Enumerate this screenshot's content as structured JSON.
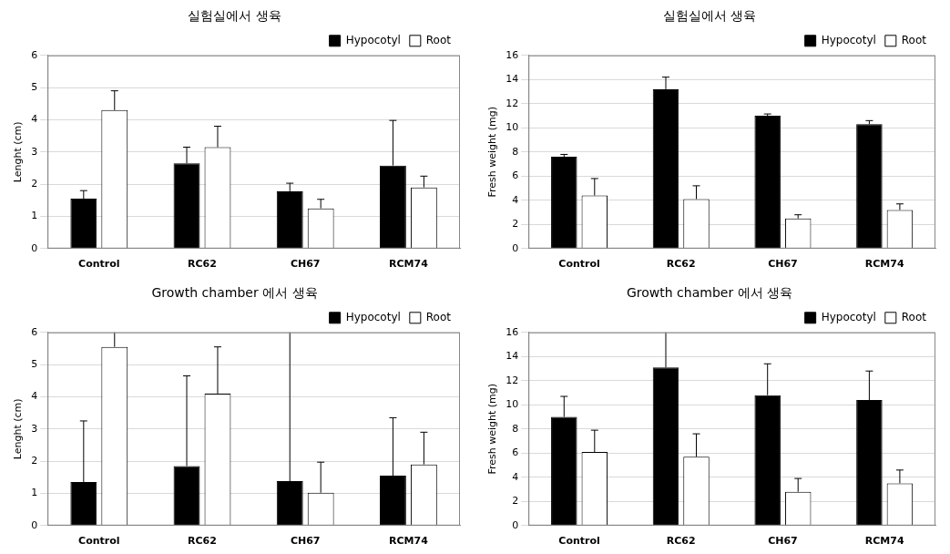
{
  "chart_data": [
    {
      "type": "bar",
      "title": "실험실에서 생육",
      "y_label": "Lenght (cm)",
      "categories": [
        "Control",
        "RC62",
        "CH67",
        "RCM74"
      ],
      "series": [
        {
          "name": "Hypocotyl",
          "color": "#000000",
          "values": [
            1.55,
            2.65,
            1.78,
            2.58
          ],
          "errors": [
            0.25,
            0.5,
            0.25,
            1.4
          ]
        },
        {
          "name": "Root",
          "color": "#ffffff",
          "values": [
            4.3,
            3.15,
            1.25,
            1.9
          ],
          "errors": [
            0.6,
            0.65,
            0.28,
            0.35
          ]
        }
      ],
      "ylim": [
        0,
        6
      ],
      "yticks": [
        0,
        1,
        2,
        3,
        4,
        5,
        6
      ],
      "grid": true,
      "legend": "top-right"
    },
    {
      "type": "bar",
      "title": "실험실에서 생육",
      "y_label": "Fresh weight (mg)",
      "categories": [
        "Control",
        "RC62",
        "CH67",
        "RCM74"
      ],
      "series": [
        {
          "name": "Hypocotyl",
          "color": "#000000",
          "values": [
            7.6,
            13.2,
            11.0,
            10.3
          ],
          "errors": [
            0.2,
            1.0,
            0.15,
            0.3
          ]
        },
        {
          "name": "Root",
          "color": "#ffffff",
          "values": [
            4.4,
            4.1,
            2.5,
            3.2
          ],
          "errors": [
            1.4,
            1.1,
            0.3,
            0.5
          ]
        }
      ],
      "ylim": [
        0,
        16
      ],
      "yticks": [
        0,
        2,
        4,
        6,
        8,
        10,
        12,
        14,
        16
      ],
      "grid": true,
      "legend": "top-right"
    },
    {
      "type": "bar",
      "title": "Growth chamber 에서 생육",
      "y_label": "Lenght (cm)",
      "categories": [
        "Control",
        "RC62",
        "CH67",
        "RCM74"
      ],
      "series": [
        {
          "name": "Hypocotyl",
          "color": "#000000",
          "values": [
            1.35,
            1.85,
            1.38,
            1.55
          ],
          "errors": [
            1.9,
            2.8,
            4.7,
            1.8
          ]
        },
        {
          "name": "Root",
          "color": "#ffffff",
          "values": [
            5.55,
            4.1,
            1.02,
            1.9
          ],
          "errors": [
            0.5,
            1.45,
            0.95,
            1.0
          ]
        }
      ],
      "ylim": [
        0,
        6
      ],
      "yticks": [
        0,
        1,
        2,
        3,
        4,
        5,
        6
      ],
      "grid": true,
      "legend": "top-right"
    },
    {
      "type": "bar",
      "title": "Growth chamber 에서 생육",
      "y_label": "Fresh weight (mg)",
      "categories": [
        "Control",
        "RC62",
        "CH67",
        "RCM74"
      ],
      "series": [
        {
          "name": "Hypocotyl",
          "color": "#000000",
          "values": [
            9.0,
            13.1,
            10.8,
            10.4
          ],
          "errors": [
            1.7,
            3.4,
            2.6,
            2.4
          ]
        },
        {
          "name": "Root",
          "color": "#ffffff",
          "values": [
            6.1,
            5.7,
            2.8,
            3.5
          ],
          "errors": [
            1.8,
            1.9,
            1.1,
            1.1
          ]
        }
      ],
      "ylim": [
        0,
        16
      ],
      "yticks": [
        0,
        2,
        4,
        6,
        8,
        10,
        12,
        14,
        16
      ],
      "grid": true,
      "legend": "top-right"
    }
  ]
}
